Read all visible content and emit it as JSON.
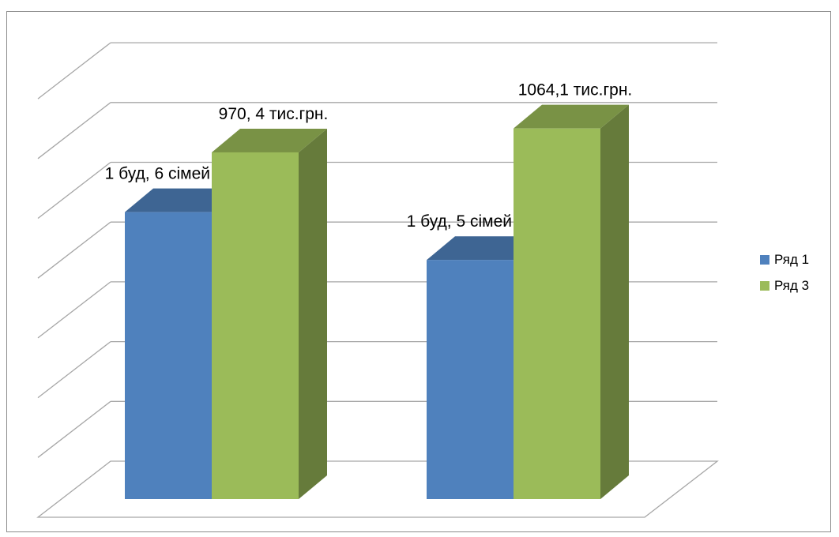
{
  "chart_data": {
    "type": "bar",
    "categories": [
      "",
      ""
    ],
    "series": [
      {
        "name": "Ряд 1",
        "color": "#4f81bd",
        "values": [
          4.8,
          4.0
        ],
        "labels": [
          "1 буд, 6 сімей",
          "1 буд, 5 сімей"
        ]
      },
      {
        "name": "Ряд 3",
        "color": "#9bbb59",
        "values": [
          5.8,
          6.2
        ],
        "labels": [
          "970, 4 тис.грн.",
          "1064,1 тис.грн."
        ]
      }
    ],
    "ylim": [
      0,
      7
    ],
    "grid": true,
    "three_d": true,
    "legend_position": "right"
  }
}
